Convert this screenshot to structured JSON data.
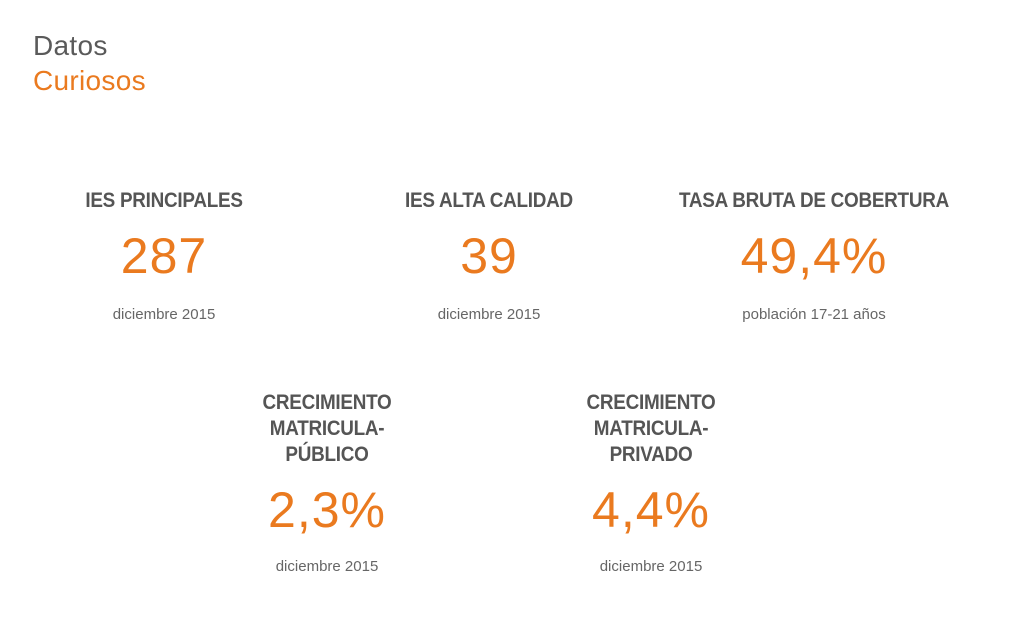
{
  "header": {
    "title_line1": "Datos",
    "title_line2": "Curiosos"
  },
  "stats": [
    {
      "label": "IES PRINCIPALES",
      "value": "287",
      "note": "diciembre 2015"
    },
    {
      "label": "IES ALTA CALIDAD",
      "value": "39",
      "note": "diciembre 2015"
    },
    {
      "label": "TASA BRUTA DE COBERTURA",
      "value": "49,4%",
      "note": "población 17-21 años"
    },
    {
      "label": "CRECIMIENTO MATRICULA-\nPÚBLICO",
      "value": "2,3%",
      "note": "diciembre 2015"
    },
    {
      "label": "CRECIMIENTO MATRICULA-\nPRIVADO",
      "value": "4,4%",
      "note": "diciembre 2015"
    }
  ],
  "colors": {
    "accent": "#ea7a1f",
    "heading": "#555555",
    "text": "#666666"
  }
}
